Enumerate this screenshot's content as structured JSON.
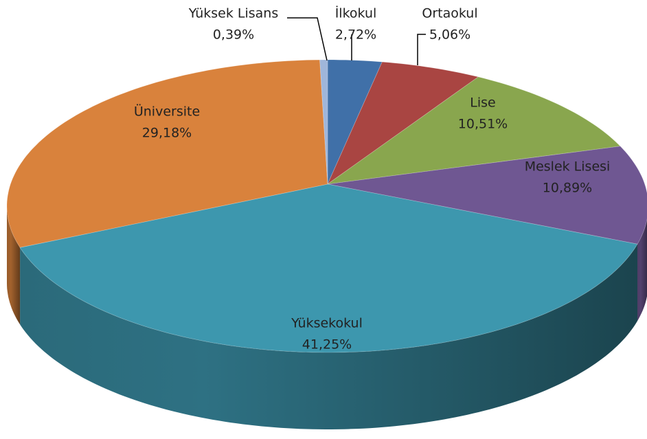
{
  "chart_data": {
    "type": "pie",
    "categories": [
      "İlkokul",
      "Ortaokul",
      "Lise",
      "Meslek Lisesi",
      "Yüksekokul",
      "Üniversite",
      "Yüksek Lisans"
    ],
    "values": [
      2.72,
      5.06,
      10.51,
      10.89,
      41.25,
      29.18,
      0.39
    ],
    "value_labels": [
      "2,72%",
      "5,06%",
      "10,51%",
      "10,89%",
      "41,25%",
      "29,18%",
      "0,39%"
    ],
    "colors": [
      "#4070a8",
      "#a94542",
      "#89a64e",
      "#6f5792",
      "#3d97ae",
      "#d9823c",
      "#9fb6da"
    ]
  }
}
